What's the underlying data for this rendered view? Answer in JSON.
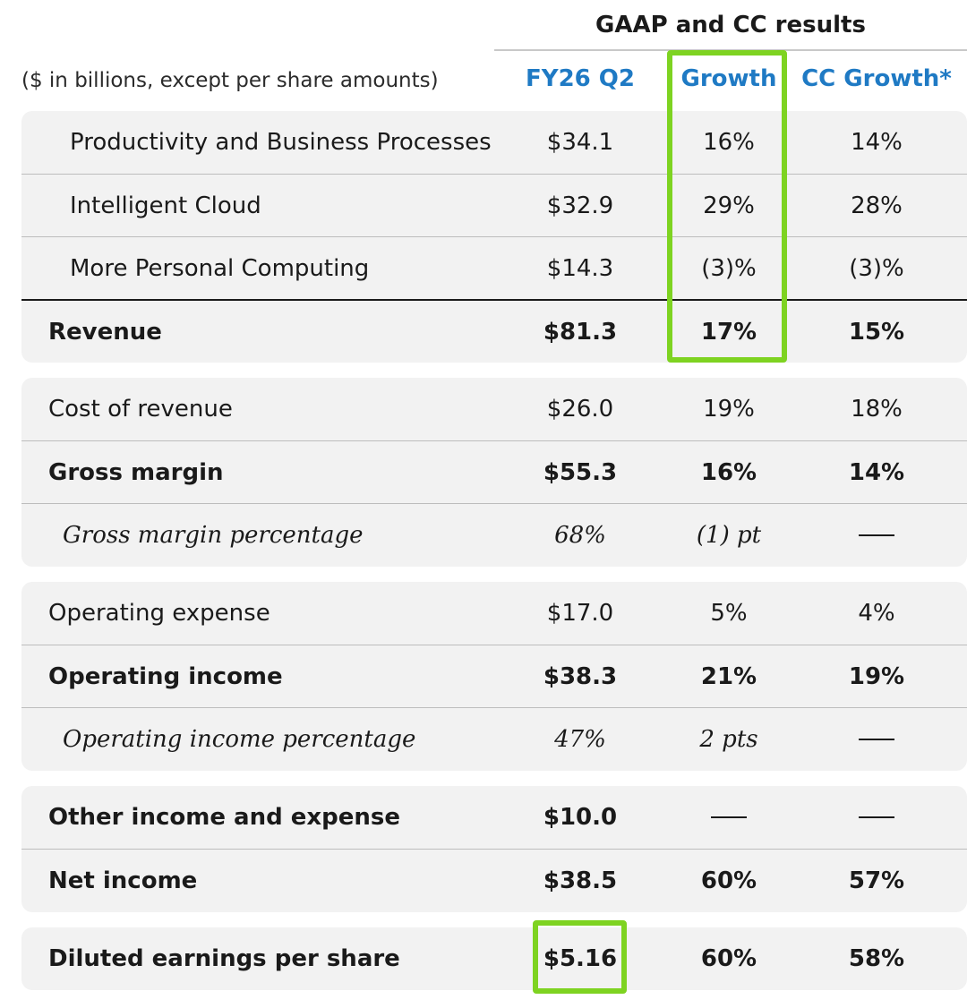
{
  "header": {
    "title": "GAAP and CC results",
    "units_note": "($ in billions, except per share amounts)",
    "columns": [
      "FY26 Q2",
      "Growth",
      "CC Growth*"
    ]
  },
  "groups": [
    {
      "rows": [
        {
          "label": "Productivity and Business Processes",
          "value": "$34.1",
          "growth": "16%",
          "cc_growth": "14%",
          "style": "segment"
        },
        {
          "label": "Intelligent Cloud",
          "value": "$32.9",
          "growth": "29%",
          "cc_growth": "28%",
          "style": "segment"
        },
        {
          "label": "More Personal Computing",
          "value": "$14.3",
          "growth": "(3)%",
          "cc_growth": "(3)%",
          "style": "segment"
        },
        {
          "label": "Revenue",
          "value": "$81.3",
          "growth": "17%",
          "cc_growth": "15%",
          "style": "bold"
        }
      ]
    },
    {
      "rows": [
        {
          "label": "Cost of revenue",
          "value": "$26.0",
          "growth": "19%",
          "cc_growth": "18%",
          "style": "normal"
        },
        {
          "label": "Gross margin",
          "value": "$55.3",
          "growth": "16%",
          "cc_growth": "14%",
          "style": "bold"
        },
        {
          "label": "Gross margin percentage",
          "value": "68%",
          "growth": "(1) pt",
          "cc_growth": "—",
          "style": "italic"
        }
      ]
    },
    {
      "rows": [
        {
          "label": "Operating expense",
          "value": "$17.0",
          "growth": "5%",
          "cc_growth": "4%",
          "style": "normal"
        },
        {
          "label": "Operating income",
          "value": "$38.3",
          "growth": "21%",
          "cc_growth": "19%",
          "style": "bold"
        },
        {
          "label": "Operating income percentage",
          "value": "47%",
          "growth": "2 pts",
          "cc_growth": "—",
          "style": "italic"
        }
      ]
    },
    {
      "rows": [
        {
          "label": "Other income and expense",
          "value": "$10.0",
          "growth": "—",
          "cc_growth": "—",
          "style": "bold"
        },
        {
          "label": "Net income",
          "value": "$38.5",
          "growth": "60%",
          "cc_growth": "57%",
          "style": "bold"
        }
      ]
    },
    {
      "rows": [
        {
          "label": "Diluted earnings per share",
          "value": "$5.16",
          "growth": "60%",
          "cc_growth": "58%",
          "style": "bold"
        }
      ]
    }
  ],
  "highlight_color": "#7ed321",
  "accent_color": "#1f7ac4"
}
